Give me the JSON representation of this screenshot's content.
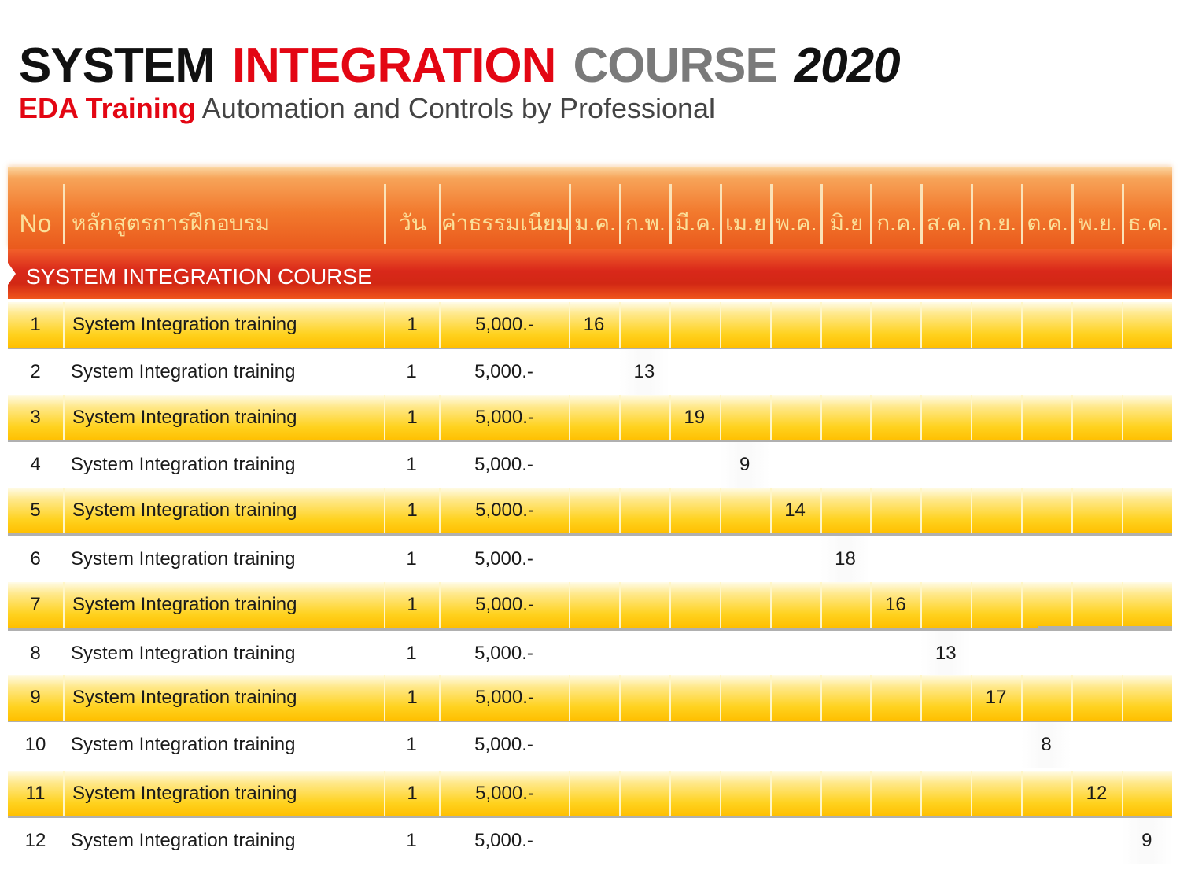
{
  "title": {
    "word1": "SYSTEM",
    "word2": "INTEGRATION",
    "word3": "COURSE",
    "year": "2020"
  },
  "subtitle": {
    "brand": "EDA Training",
    "tagline": "Automation and Controls by Professional"
  },
  "colors": {
    "brand_red": "#e30613",
    "header_orange": "#f27a2e",
    "section_red": "#d9281a",
    "row_yellow": "#ffd21f"
  },
  "table": {
    "headers": {
      "no": "No",
      "course": "หลักสูตรการฝึกอบรม",
      "days": "วัน",
      "fee": "ค่าธรรมเนียม",
      "months": [
        "ม.ค.",
        "ก.พ.",
        "มี.ค.",
        "เม.ย",
        "พ.ค.",
        "มิ.ย",
        "ก.ค.",
        "ส.ค.",
        "ก.ย.",
        "ต.ค.",
        "พ.ย.",
        "ธ.ค."
      ]
    },
    "section": "SYSTEM INTEGRATION COURSE",
    "rows": [
      {
        "no": "1",
        "course": "System Integration training",
        "days": "1",
        "fee": "5,000.-",
        "month_index": 0,
        "date": "16"
      },
      {
        "no": "2",
        "course": "System Integration training",
        "days": "1",
        "fee": "5,000.-",
        "month_index": 1,
        "date": "13"
      },
      {
        "no": "3",
        "course": "System Integration training",
        "days": "1",
        "fee": "5,000.-",
        "month_index": 2,
        "date": "19"
      },
      {
        "no": "4",
        "course": "System Integration training",
        "days": "1",
        "fee": "5,000.-",
        "month_index": 3,
        "date": "9"
      },
      {
        "no": "5",
        "course": "System Integration training",
        "days": "1",
        "fee": "5,000.-",
        "month_index": 4,
        "date": "14"
      },
      {
        "no": "6",
        "course": "System Integration training",
        "days": "1",
        "fee": "5,000.-",
        "month_index": 5,
        "date": "18"
      },
      {
        "no": "7",
        "course": "System Integration training",
        "days": "1",
        "fee": "5,000.-",
        "month_index": 6,
        "date": "16"
      },
      {
        "no": "8",
        "course": "System Integration training",
        "days": "1",
        "fee": "5,000.-",
        "month_index": 7,
        "date": "13"
      },
      {
        "no": "9",
        "course": "System Integration training",
        "days": "1",
        "fee": "5,000.-",
        "month_index": 8,
        "date": "17"
      },
      {
        "no": "10",
        "course": "System Integration training",
        "days": "1",
        "fee": "5,000.-",
        "month_index": 9,
        "date": "8"
      },
      {
        "no": "11",
        "course": "System Integration training",
        "days": "1",
        "fee": "5,000.-",
        "month_index": 10,
        "date": "12"
      },
      {
        "no": "12",
        "course": "System Integration training",
        "days": "1",
        "fee": "5,000.-",
        "month_index": 11,
        "date": "9"
      }
    ]
  }
}
